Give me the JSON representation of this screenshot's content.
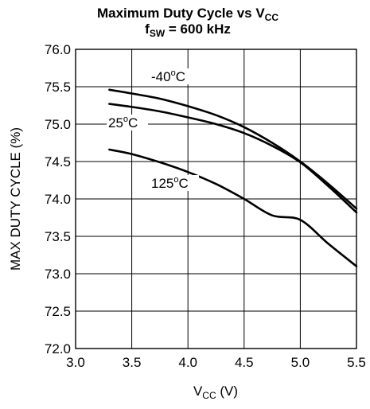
{
  "chart_data": {
    "type": "line",
    "title": {
      "line1": "Maximum Duty Cycle vs V",
      "line1_sub": "CC",
      "line2_main": "f",
      "line2_sub": "SW",
      "line2_rest": " = 600 kHz"
    },
    "xlabel": {
      "main": "V",
      "sub": "CC",
      "rest": " (V)"
    },
    "ylabel": "MAX DUTY CYCLE (%)",
    "xlim": [
      3.0,
      5.5
    ],
    "ylim": [
      72.0,
      76.0
    ],
    "xticks": [
      "3.0",
      "3.5",
      "4.0",
      "4.5",
      "5.0",
      "5.5"
    ],
    "yticks": [
      "76.0",
      "75.5",
      "75.0",
      "74.5",
      "74.0",
      "73.5",
      "73.0",
      "72.5",
      "72.0"
    ],
    "grid": true,
    "series": [
      {
        "name": "-40",
        "name_sup": "o",
        "name_suffix": "C",
        "x": [
          3.3,
          3.5,
          3.75,
          4.0,
          4.25,
          4.5,
          4.75,
          5.0,
          5.25,
          5.5
        ],
        "y": [
          75.46,
          75.41,
          75.34,
          75.24,
          75.12,
          74.96,
          74.75,
          74.5,
          74.2,
          73.87
        ]
      },
      {
        "name": "25",
        "name_sup": "o",
        "name_suffix": "C",
        "x": [
          3.3,
          3.5,
          3.75,
          4.0,
          4.25,
          4.5,
          4.75,
          5.0,
          5.25,
          5.5
        ],
        "y": [
          75.27,
          75.23,
          75.17,
          75.09,
          75.0,
          74.88,
          74.71,
          74.49,
          74.17,
          73.82
        ]
      },
      {
        "name": "125",
        "name_sup": "o",
        "name_suffix": "C",
        "x": [
          3.3,
          3.5,
          3.75,
          4.0,
          4.25,
          4.5,
          4.75,
          5.0,
          5.25,
          5.5
        ],
        "y": [
          74.66,
          74.6,
          74.49,
          74.36,
          74.2,
          74.0,
          73.78,
          73.72,
          73.4,
          73.1
        ]
      }
    ]
  }
}
